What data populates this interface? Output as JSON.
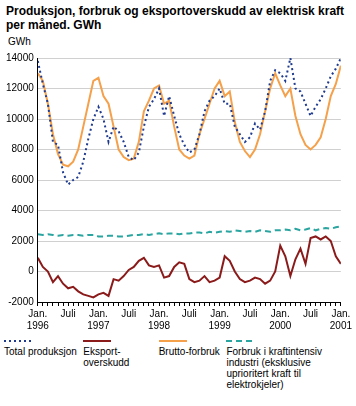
{
  "chart_data": {
    "type": "line",
    "title": "Produksjon, forbruk og eksportoverskudd av elektrisk kraft per måned. GWh",
    "y_label": "GWh",
    "categories": [
      "Jan. 1996",
      null,
      null,
      null,
      null,
      null,
      "Juli",
      null,
      null,
      null,
      null,
      null,
      "Jan. 1997",
      null,
      null,
      null,
      null,
      null,
      "Juli",
      null,
      null,
      null,
      null,
      null,
      "Jan. 1998",
      null,
      null,
      null,
      null,
      null,
      "Juli",
      null,
      null,
      null,
      null,
      null,
      "Jan. 1999",
      null,
      null,
      null,
      null,
      null,
      "Juli",
      null,
      null,
      null,
      null,
      null,
      "Jan. 2000",
      null,
      null,
      null,
      null,
      null,
      "Juli",
      null,
      null,
      null,
      null,
      null,
      "Jan. 2001"
    ],
    "series": [
      {
        "name": "Total produksjon",
        "color": "#1f3b8f",
        "line_style": "dotted",
        "values": [
          13800,
          12300,
          11000,
          8500,
          8300,
          6500,
          5700,
          6000,
          6200,
          7200,
          8700,
          10000,
          10800,
          10000,
          8500,
          9500,
          9200,
          8500,
          7500,
          7300,
          7800,
          9500,
          10800,
          11300,
          12000,
          10200,
          11500,
          10200,
          9000,
          8300,
          7800,
          8000,
          9000,
          10500,
          11200,
          11500,
          12000,
          11000,
          11000,
          9500,
          9000,
          8500,
          8800,
          9700,
          9300,
          10500,
          12500,
          13200,
          13000,
          12500,
          14000,
          12000,
          11800,
          11000,
          10200,
          10800,
          11300,
          12000,
          12800,
          13300,
          14000
        ]
      },
      {
        "name": "Eksport-overskudd",
        "color": "#8b1a1a",
        "line_style": "solid",
        "values": [
          900,
          300,
          0,
          -700,
          -300,
          -800,
          -1100,
          -1000,
          -1300,
          -1500,
          -1600,
          -1700,
          -1500,
          -1400,
          -1600,
          -500,
          -600,
          -300,
          100,
          300,
          700,
          900,
          400,
          300,
          400,
          -400,
          -300,
          300,
          600,
          500,
          -500,
          -700,
          -600,
          -300,
          -700,
          -600,
          -400,
          1000,
          700,
          0,
          -500,
          -700,
          -600,
          -400,
          -500,
          -800,
          -600,
          0,
          1700,
          1000,
          -300,
          800,
          1500,
          500,
          2200,
          2300,
          2100,
          2300,
          2000,
          1000,
          500
        ]
      },
      {
        "name": "Brutto-forbruk",
        "color": "#f5a04a",
        "line_style": "solid",
        "values": [
          13000,
          12500,
          11000,
          9000,
          7700,
          7000,
          6900,
          7200,
          8000,
          9500,
          11000,
          12500,
          12700,
          11500,
          11000,
          9500,
          8000,
          7500,
          7300,
          7400,
          8500,
          10500,
          11200,
          12000,
          12200,
          11000,
          11200,
          9500,
          8000,
          7600,
          7400,
          7600,
          9000,
          10000,
          11000,
          12000,
          12500,
          11500,
          11800,
          9800,
          8500,
          7900,
          7500,
          8000,
          9000,
          10500,
          12000,
          13000,
          12200,
          11500,
          12000,
          10200,
          9000,
          8300,
          8000,
          8300,
          8800,
          10000,
          11500,
          12300,
          13500
        ]
      },
      {
        "name": "Forbruk i kraftintensiv industri (eksklusive uprioritert kraft til elektrokjeler)",
        "color": "#2aa5a0",
        "line_style": "dashed",
        "values": [
          2450,
          2400,
          2450,
          2400,
          2350,
          2400,
          2350,
          2400,
          2400,
          2350,
          2400,
          2400,
          2300,
          2300,
          2350,
          2350,
          2300,
          2300,
          2350,
          2400,
          2400,
          2450,
          2400,
          2450,
          2500,
          2450,
          2500,
          2500,
          2450,
          2500,
          2500,
          2550,
          2550,
          2500,
          2600,
          2550,
          2600,
          2650,
          2600,
          2700,
          2650,
          2600,
          2650,
          2600,
          2700,
          2650,
          2600,
          2700,
          2700,
          2750,
          2700,
          2800,
          2700,
          2750,
          2850,
          2700,
          2800,
          2850,
          2800,
          2900,
          2950
        ]
      }
    ],
    "ylim": [
      -2000,
      14000
    ],
    "yticks": [
      -2000,
      0,
      2000,
      4000,
      6000,
      8000,
      10000,
      12000,
      14000
    ],
    "grid": true
  }
}
